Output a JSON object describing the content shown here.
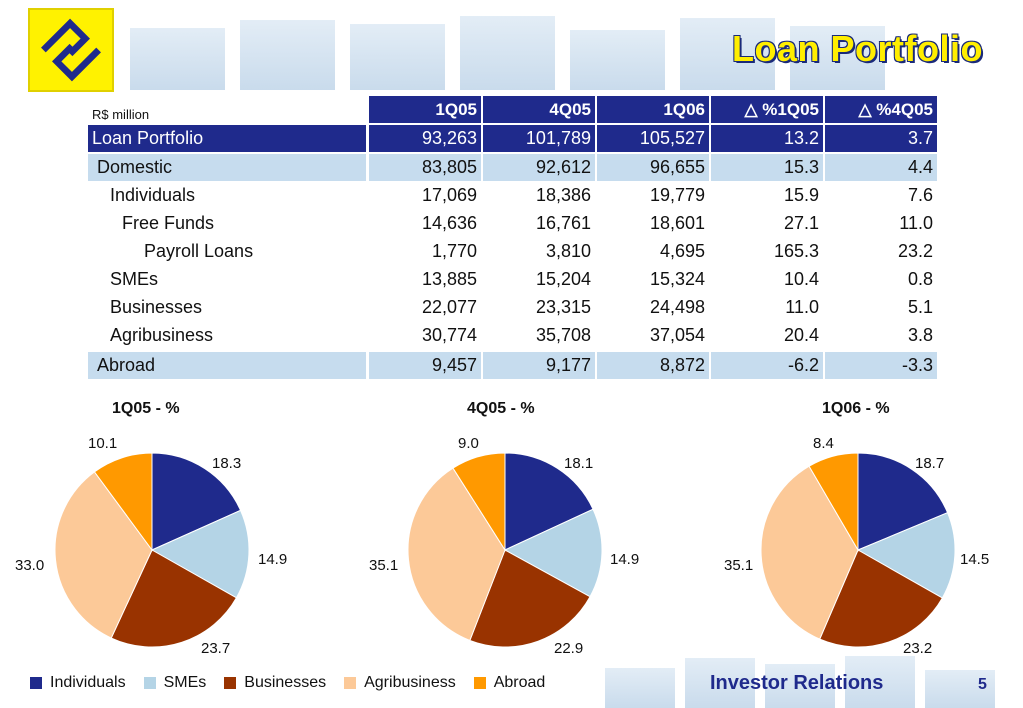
{
  "title": "Loan Portfolio",
  "unit_label": "R$ million",
  "table": {
    "columns": [
      "1Q05",
      "4Q05",
      "1Q06",
      "△ %1Q05",
      "△ %4Q05"
    ],
    "rows": [
      {
        "label": "Loan Portfolio",
        "values": [
          "93,263",
          "101,789",
          "105,527",
          "13.2",
          "3.7"
        ]
      },
      {
        "label": "Domestic",
        "values": [
          "83,805",
          "92,612",
          "96,655",
          "15.3",
          "4.4"
        ]
      },
      {
        "label": "Individuals",
        "values": [
          "17,069",
          "18,386",
          "19,779",
          "15.9",
          "7.6"
        ]
      },
      {
        "label": "Free Funds",
        "values": [
          "14,636",
          "16,761",
          "18,601",
          "27.1",
          "11.0"
        ]
      },
      {
        "label": "Payroll Loans",
        "values": [
          "1,770",
          "3,810",
          "4,695",
          "165.3",
          "23.2"
        ]
      },
      {
        "label": "SMEs",
        "values": [
          "13,885",
          "15,204",
          "15,324",
          "10.4",
          "0.8"
        ]
      },
      {
        "label": "Businesses",
        "values": [
          "22,077",
          "23,315",
          "24,498",
          "11.0",
          "5.1"
        ]
      },
      {
        "label": "Agribusiness",
        "values": [
          "30,774",
          "35,708",
          "37,054",
          "20.4",
          "3.8"
        ]
      },
      {
        "label": "Abroad",
        "values": [
          "9,457",
          "9,177",
          "8,872",
          "-6.2",
          "-3.3"
        ]
      }
    ]
  },
  "chart_data": [
    {
      "type": "pie",
      "title": "1Q05 - %",
      "categories": [
        "Individuals",
        "SMEs",
        "Businesses",
        "Agribusiness",
        "Abroad"
      ],
      "values": [
        18.3,
        14.9,
        23.7,
        33.0,
        10.1
      ],
      "labels": [
        "18.3",
        "14.9",
        "23.7",
        "33.0",
        "10.1"
      ]
    },
    {
      "type": "pie",
      "title": "4Q05 - %",
      "categories": [
        "Individuals",
        "SMEs",
        "Businesses",
        "Agribusiness",
        "Abroad"
      ],
      "values": [
        18.1,
        14.9,
        22.9,
        35.1,
        9.0
      ],
      "labels": [
        "18.1",
        "14.9",
        "22.9",
        "35.1",
        "9.0"
      ]
    },
    {
      "type": "pie",
      "title": "1Q06 - %",
      "categories": [
        "Individuals",
        "SMEs",
        "Businesses",
        "Agribusiness",
        "Abroad"
      ],
      "values": [
        18.7,
        14.5,
        23.2,
        35.1,
        8.4
      ],
      "labels": [
        "18.7",
        "14.5",
        "23.2",
        "35.1",
        "8.4"
      ]
    }
  ],
  "legend": [
    {
      "label": "Individuals",
      "color": "#1f2a8c"
    },
    {
      "label": "SMEs",
      "color": "#b4d4e6"
    },
    {
      "label": "Businesses",
      "color": "#993300"
    },
    {
      "label": "Agribusiness",
      "color": "#fcc998"
    },
    {
      "label": "Abroad",
      "color": "#ff9900"
    }
  ],
  "footer": {
    "brand": "Investor Relations",
    "page": "5"
  }
}
